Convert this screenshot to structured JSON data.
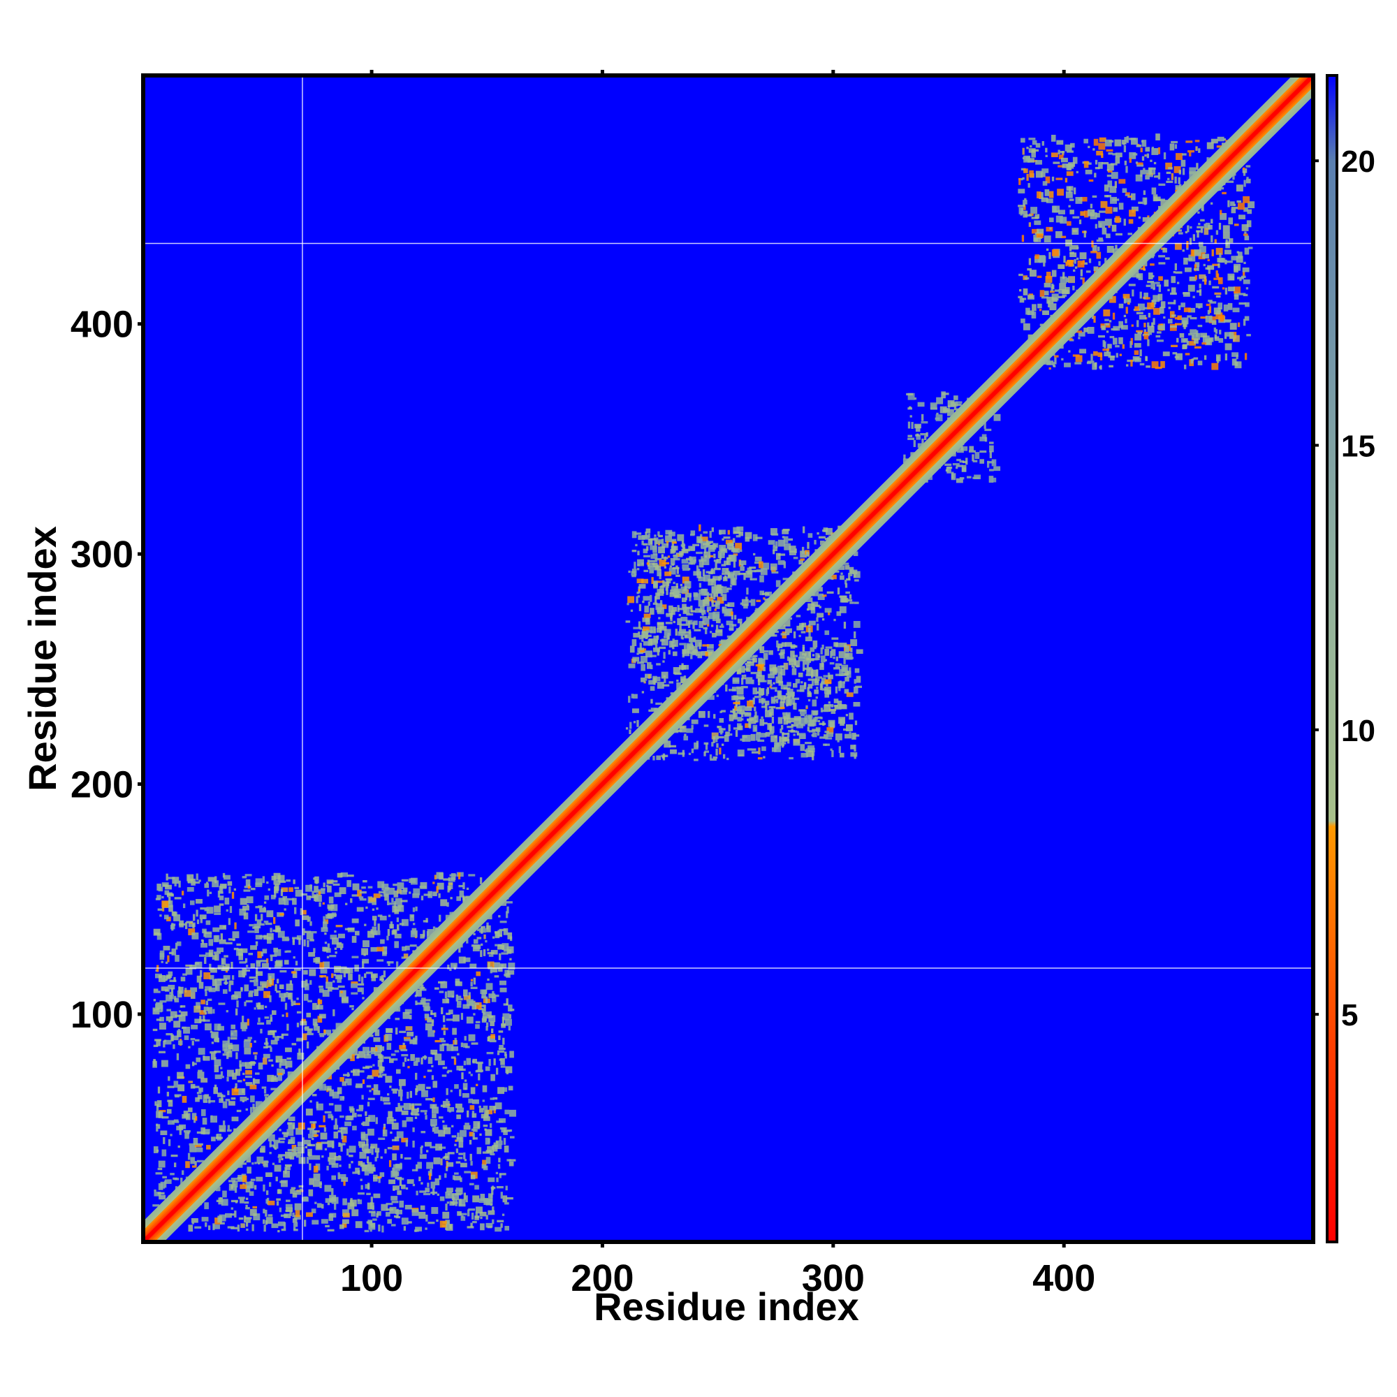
{
  "chart_data": {
    "type": "heatmap",
    "title": "",
    "xlabel": "Residue index",
    "ylabel": "Residue index",
    "xlim": [
      1,
      508
    ],
    "ylim": [
      1,
      508
    ],
    "x_ticks": [
      100,
      200,
      300,
      400
    ],
    "y_ticks": [
      100,
      200,
      300,
      400
    ],
    "grid": false,
    "colorbar": {
      "placement": "right",
      "range": [
        1,
        21.5
      ],
      "ticks": [
        5,
        10,
        15,
        20
      ],
      "colors": [
        {
          "value": 1,
          "color": "#ff0000"
        },
        {
          "value": 4.5,
          "color": "#ff4000"
        },
        {
          "value": 8.3,
          "color": "#ff9900"
        },
        {
          "value": 8.4,
          "color": "#a8c08a"
        },
        {
          "value": 13,
          "color": "#8fb0a0"
        },
        {
          "value": 20,
          "color": "#5a7fb0"
        },
        {
          "value": 21.5,
          "color": "#0000ff"
        }
      ]
    },
    "background_color": "#0000ff",
    "reference_lines": {
      "x": [
        70
      ],
      "y": [
        120,
        435
      ]
    },
    "features": {
      "diagonal": {
        "from": 1,
        "to": 508,
        "core_value": 2,
        "halfwidth_residues": 9
      },
      "contact_clusters": [
        {
          "x_range": [
            5,
            160
          ],
          "y_range": [
            5,
            160
          ],
          "value": 11
        },
        {
          "x_range": [
            210,
            310
          ],
          "y_range": [
            210,
            310
          ],
          "value": 11
        },
        {
          "x_range": [
            330,
            370
          ],
          "y_range": [
            330,
            370
          ],
          "value": 12
        },
        {
          "x_range": [
            380,
            480
          ],
          "y_range": [
            380,
            480
          ],
          "value": 10
        }
      ],
      "antiparallel_hairpin": [
        {
          "x_range": [
            215,
            260
          ],
          "y_range": [
            255,
            305
          ],
          "value": 11
        },
        {
          "x_range": [
            255,
            305
          ],
          "y_range": [
            215,
            260
          ],
          "value": 11
        }
      ]
    }
  }
}
